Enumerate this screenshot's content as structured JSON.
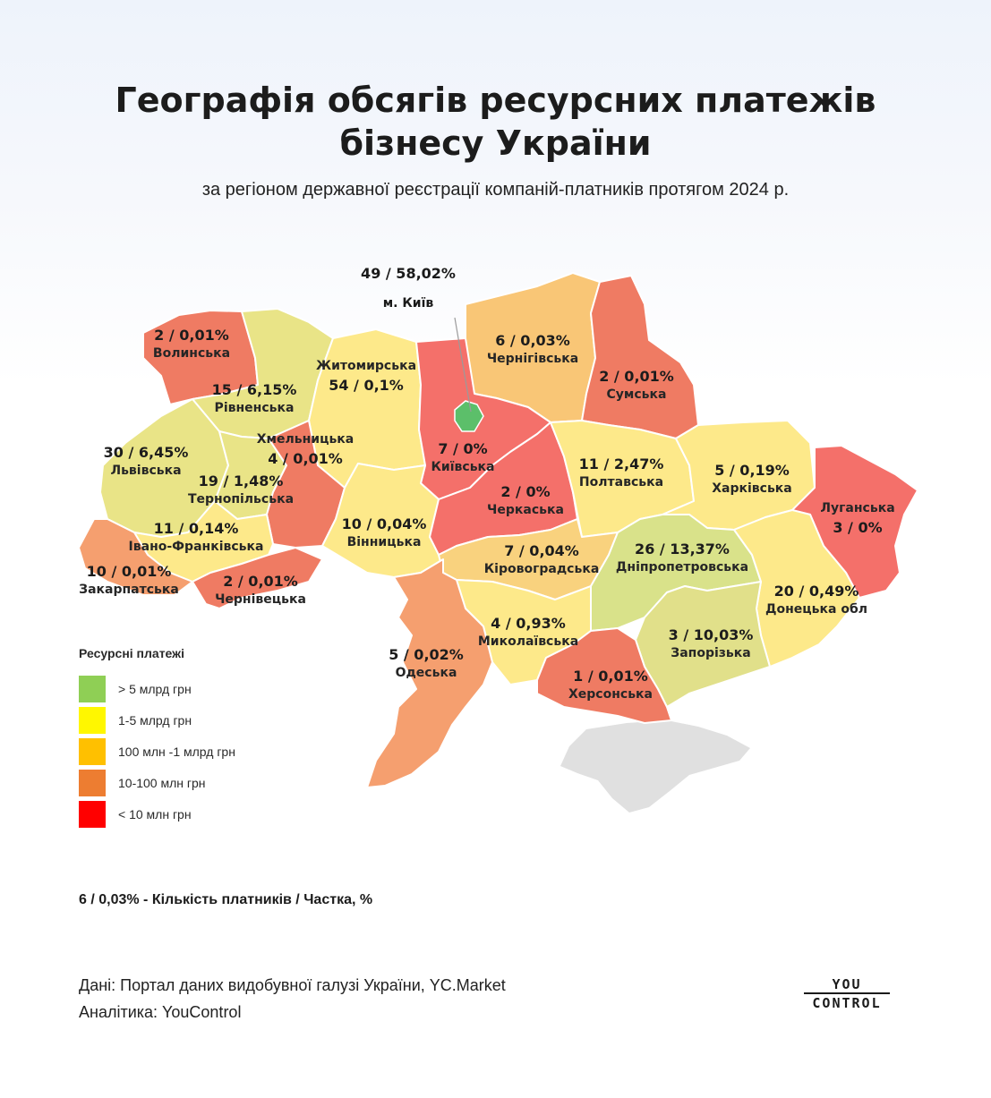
{
  "title_line1": "Географія обсягів ресурсних платежів",
  "title_line2": "бізнесу України",
  "subtitle": "за регіоном державної реєстрації компаній-платників протягом 2024 р.",
  "colors": {
    "over_5bn": "#8fcf55",
    "1_5bn": "#fff700",
    "100m_1bn": "#ffc000",
    "10_100m": "#ed7d31",
    "under_10m": "#ff0000",
    "map_green": "#5cbf6a",
    "map_light_green": "#d9e28a",
    "map_yellow_green": "#e9e487",
    "map_yellow": "#fde98a",
    "map_light_orange": "#f9c676",
    "map_orange": "#f59f6f",
    "map_red_orange": "#ef7b63",
    "map_red": "#f4706a",
    "crimea": "#e0e0e0"
  },
  "kyiv_city": {
    "value": "49 / 58,02%",
    "name": "м. Київ"
  },
  "regions": [
    {
      "name": "Волинська",
      "value": "2 / 0,01%"
    },
    {
      "name": "Рівненська",
      "value": "15 / 6,15%"
    },
    {
      "name": "Житомирська",
      "value": "54 / 0,1%"
    },
    {
      "name": "Чернігівська",
      "value": "6 / 0,03%"
    },
    {
      "name": "Сумська",
      "value": "2 / 0,01%"
    },
    {
      "name": "Львівська",
      "value": "30 / 6,45%"
    },
    {
      "name": "Хмельницька",
      "value": "4 / 0,01%"
    },
    {
      "name": "Київська",
      "value": "7 / 0%"
    },
    {
      "name": "Тернопільська",
      "value": "19 / 1,48%"
    },
    {
      "name": "Полтавська",
      "value": "11 / 2,47%"
    },
    {
      "name": "Харківська",
      "value": "5 / 0,19%"
    },
    {
      "name": "Черкаська",
      "value": "2 / 0%"
    },
    {
      "name": "Луганська",
      "value": "3 / 0%"
    },
    {
      "name": "Івано-Франківська",
      "value": "11 / 0,14%"
    },
    {
      "name": "Вінницька",
      "value": "10 / 0,04%"
    },
    {
      "name": "Закарпатська",
      "value": "10 / 0,01%"
    },
    {
      "name": "Кіровоградська",
      "value": "7 / 0,04%"
    },
    {
      "name": "Дніпропетровська",
      "value": "26 / 13,37%"
    },
    {
      "name": "Чернівецька",
      "value": "2 / 0,01%"
    },
    {
      "name": "Донецька обл",
      "value": "20 / 0,49%"
    },
    {
      "name": "Миколаївська",
      "value": "4 / 0,93%"
    },
    {
      "name": "Запорізька",
      "value": "3 / 10,03%"
    },
    {
      "name": "Одеська",
      "value": "5 / 0,02%"
    },
    {
      "name": "Херсонська",
      "value": "1 / 0,01%"
    }
  ],
  "legend": {
    "title": "Ресурсні платежі",
    "items": [
      {
        "label": "> 5 млрд грн",
        "color": "#8fcf55"
      },
      {
        "label": "1-5 млрд грн",
        "color": "#fff700"
      },
      {
        "label": "100 млн -1 млрд грн",
        "color": "#ffc000"
      },
      {
        "label": "10-100 млн грн",
        "color": "#ed7d31"
      },
      {
        "label": "< 10 млн грн",
        "color": "#ff0000"
      }
    ]
  },
  "note": "6 / 0,03% - Кількість платників / Частка, %",
  "source_line1": "Дані: Портал даних видобувної галузі України, YC.Market",
  "source_line2": "Аналітика: YouControl",
  "logo": {
    "top": "YOU",
    "bottom": "CONTROL"
  }
}
